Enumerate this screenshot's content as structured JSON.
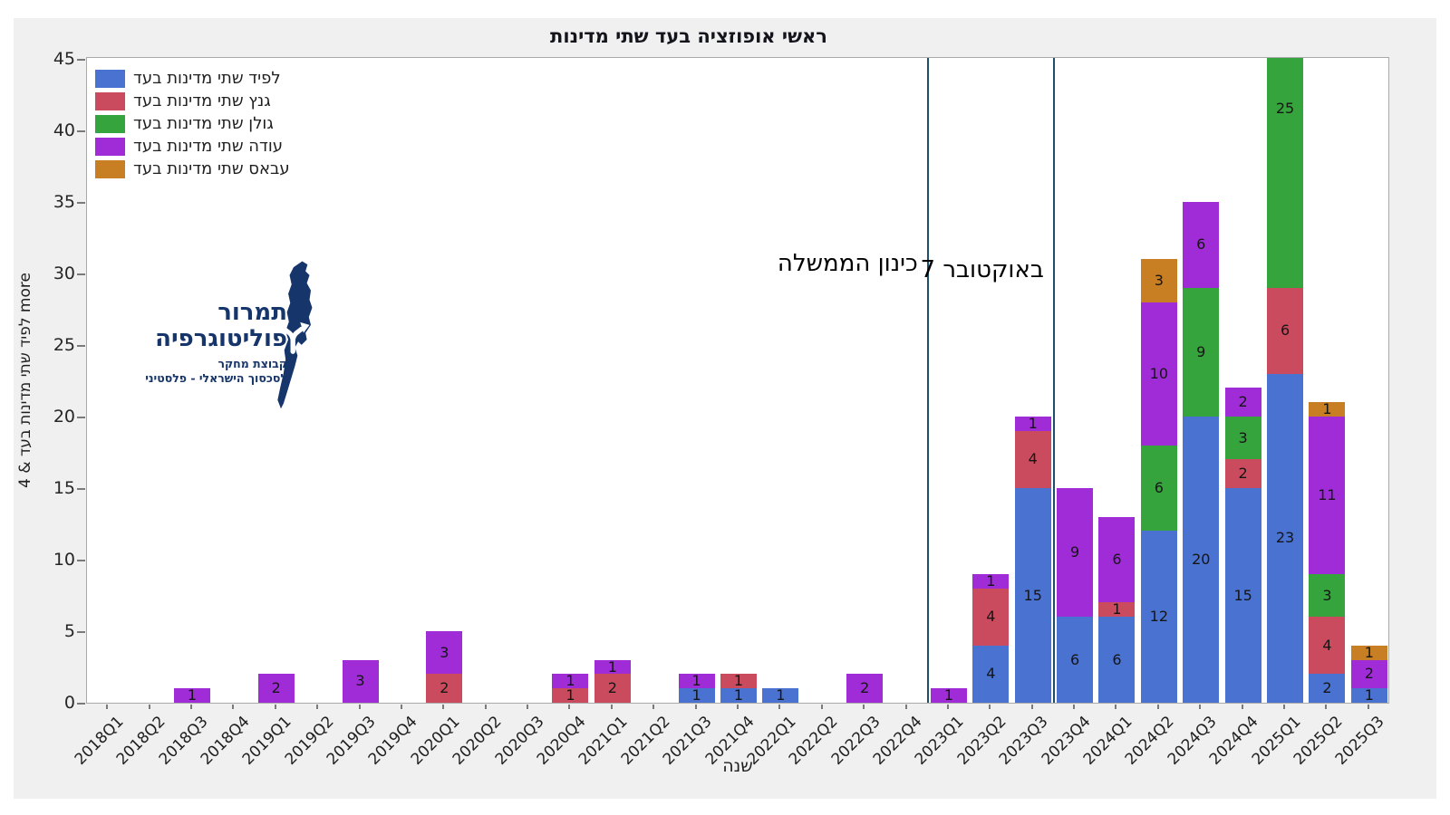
{
  "title": "ראשי אופוזציה בעד שתי מדינות",
  "colors": {
    "lapid_blue": "#4a72d0",
    "gantz_red": "#cb4b5e",
    "golan_green": "#36a43c",
    "odeh_purple": "#a02cd8",
    "abbas_orange": "#c87e22",
    "event_line": "#1d4f6b",
    "logo_navy": "#15356b",
    "figure_bg": "#f0f0f0",
    "plot_border": "#a9a9a9"
  },
  "chart_data": {
    "type": "bar",
    "stacked": true,
    "title": "ראשי אופוזציה בעד שתי מדינות",
    "xlabel": "שנה",
    "ylabel": "4 & לפיד שתי מדינות בעד more",
    "ylim": [
      0,
      45
    ],
    "yticks": [
      0,
      5,
      10,
      15,
      20,
      25,
      30,
      35,
      40,
      45
    ],
    "grid": false,
    "legend_position": "upper left",
    "categories": [
      "2018Q1",
      "2018Q2",
      "2018Q3",
      "2018Q4",
      "2019Q1",
      "2019Q2",
      "2019Q3",
      "2019Q4",
      "2020Q1",
      "2020Q2",
      "2020Q3",
      "2020Q4",
      "2021Q1",
      "2021Q2",
      "2021Q3",
      "2021Q4",
      "2022Q1",
      "2022Q2",
      "2022Q3",
      "2022Q4",
      "2023Q1",
      "2023Q2",
      "2023Q3",
      "2023Q4",
      "2024Q1",
      "2024Q2",
      "2024Q3",
      "2024Q4",
      "2025Q1",
      "2025Q2",
      "2025Q3"
    ],
    "series": [
      {
        "name": "לפיד שתי מדינות בעד",
        "color": "#4a72d0",
        "values": [
          0,
          0,
          0,
          0,
          0,
          0,
          0,
          0,
          0,
          0,
          0,
          0,
          0,
          0,
          1,
          1,
          1,
          0,
          0,
          0,
          0,
          4,
          15,
          6,
          6,
          12,
          20,
          15,
          23,
          2,
          1
        ]
      },
      {
        "name": "גנץ שתי מדינות בעד",
        "color": "#cb4b5e",
        "values": [
          0,
          0,
          0,
          0,
          0,
          0,
          0,
          0,
          2,
          0,
          0,
          1,
          2,
          0,
          0,
          1,
          0,
          0,
          0,
          0,
          0,
          4,
          4,
          0,
          1,
          0,
          0,
          2,
          6,
          4,
          0
        ]
      },
      {
        "name": "גולן שתי מדינות בעד",
        "color": "#36a43c",
        "values": [
          0,
          0,
          0,
          0,
          0,
          0,
          0,
          0,
          0,
          0,
          0,
          0,
          0,
          0,
          0,
          0,
          0,
          0,
          0,
          0,
          0,
          0,
          0,
          0,
          0,
          6,
          9,
          3,
          25,
          3,
          0
        ]
      },
      {
        "name": "עודה שתי מדינות בעד",
        "color": "#a02cd8",
        "values": [
          0,
          0,
          1,
          0,
          2,
          0,
          3,
          0,
          3,
          0,
          0,
          1,
          1,
          0,
          1,
          0,
          0,
          0,
          2,
          0,
          1,
          1,
          1,
          9,
          6,
          10,
          6,
          2,
          0,
          11,
          2
        ]
      },
      {
        "name": "עבאס שתי מדינות בעד",
        "color": "#c87e22",
        "values": [
          0,
          0,
          0,
          0,
          0,
          0,
          0,
          0,
          0,
          0,
          0,
          0,
          0,
          0,
          0,
          0,
          0,
          0,
          0,
          0,
          0,
          0,
          0,
          0,
          0,
          3,
          0,
          0,
          0,
          1,
          1
        ]
      }
    ],
    "vlines": [
      {
        "after_category": "2022Q4",
        "label": "כינון הממשלה",
        "color": "#1d4f6b"
      },
      {
        "after_category": "2023Q3",
        "label": "7 באוקטובר",
        "color": "#1d4f6b"
      }
    ]
  },
  "logo": {
    "line1": "תמרור",
    "line2": "פוליטוגרפיה",
    "line3": "קבוצת מחקר",
    "line4": "לסכסוך הישראלי - פלסטיני"
  }
}
